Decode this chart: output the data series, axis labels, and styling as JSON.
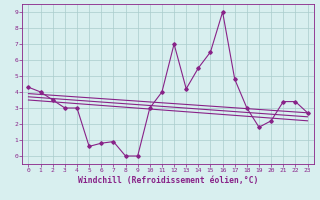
{
  "x": [
    0,
    1,
    2,
    3,
    4,
    5,
    6,
    7,
    8,
    9,
    10,
    11,
    12,
    13,
    14,
    15,
    16,
    17,
    18,
    19,
    20,
    21,
    22,
    23
  ],
  "y_main": [
    4.3,
    4.0,
    3.5,
    3.0,
    3.0,
    0.6,
    0.8,
    0.9,
    0.0,
    0.0,
    3.0,
    4.0,
    7.0,
    4.2,
    5.5,
    6.5,
    9.0,
    4.8,
    3.0,
    1.8,
    2.2,
    3.4,
    3.4,
    2.7
  ],
  "trend1_x": [
    0,
    23
  ],
  "trend1_y": [
    3.9,
    2.7
  ],
  "trend2_x": [
    0,
    23
  ],
  "trend2_y": [
    3.7,
    2.45
  ],
  "trend3_x": [
    0,
    23
  ],
  "trend3_y": [
    3.5,
    2.2
  ],
  "xlim": [
    -0.5,
    23.5
  ],
  "ylim": [
    -0.5,
    9.5
  ],
  "xticks": [
    0,
    1,
    2,
    3,
    4,
    5,
    6,
    7,
    8,
    9,
    10,
    11,
    12,
    13,
    14,
    15,
    16,
    17,
    18,
    19,
    20,
    21,
    22,
    23
  ],
  "yticks": [
    0,
    1,
    2,
    3,
    4,
    5,
    6,
    7,
    8,
    9
  ],
  "xlabel": "Windchill (Refroidissement éolien,°C)",
  "line_color": "#882288",
  "bg_color": "#d8efef",
  "grid_color": "#aacccc",
  "tick_fontsize": 4.5,
  "xlabel_fontsize": 5.8
}
